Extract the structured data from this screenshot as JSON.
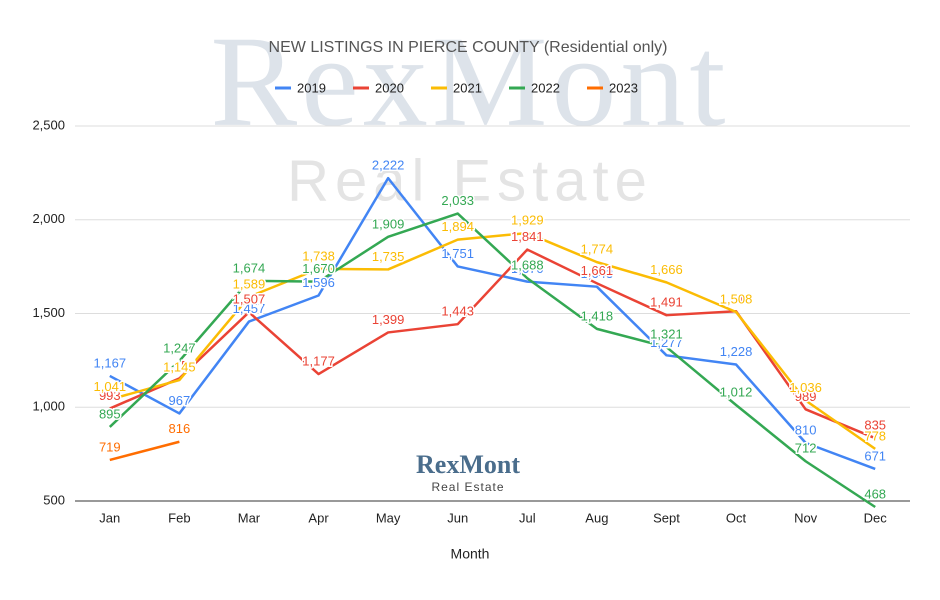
{
  "chart_data": {
    "type": "line",
    "title": "NEW LISTINGS IN PIERCE COUNTY  (Residential only)",
    "x_label": "Month",
    "watermark": {
      "title": "RexMont",
      "subtitle": "Real Estate"
    },
    "logo": {
      "title": "RexMont",
      "subtitle": "Real Estate"
    },
    "categories": [
      "Jan",
      "Feb",
      "Mar",
      "Apr",
      "May",
      "Jun",
      "Jul",
      "Aug",
      "Sept",
      "Oct",
      "Nov",
      "Dec"
    ],
    "series": [
      {
        "name": "2019",
        "color": "#4285f4",
        "values": [
          1167,
          967,
          1457,
          1596,
          2222,
          1751,
          1670,
          1643,
          1277,
          1228,
          810,
          671
        ],
        "value_labels": [
          "1,167",
          "967",
          "1,457",
          "1,596",
          "2,222",
          "1,751",
          "1,670",
          "1,643",
          "1,277",
          "1,228",
          "810",
          "671"
        ]
      },
      {
        "name": "2020",
        "color": "#ea4335",
        "values": [
          993,
          1154,
          1507,
          1177,
          1399,
          1443,
          1841,
          1661,
          1491,
          1512,
          989,
          835
        ],
        "value_labels": [
          "993",
          "1,154",
          "1,507",
          "1,177",
          "1,399",
          "1,443",
          "1,841",
          "1,661",
          "1,491",
          "1,512",
          "989",
          "835"
        ]
      },
      {
        "name": "2021",
        "color": "#fbbc04",
        "values": [
          1041,
          1145,
          1589,
          1738,
          1735,
          1894,
          1929,
          1774,
          1666,
          1508,
          1036,
          778
        ],
        "value_labels": [
          "1,041",
          "1,145",
          "1,589",
          "1,738",
          "1,735",
          "1,894",
          "1,929",
          "1,774",
          "1,666",
          "1,508",
          "1,036",
          "778"
        ]
      },
      {
        "name": "2022",
        "color": "#34a853",
        "values": [
          895,
          1247,
          1674,
          1670,
          1909,
          2033,
          1688,
          1418,
          1321,
          1012,
          712,
          468
        ],
        "value_labels": [
          "895",
          "1,247",
          "1,674",
          "1,670",
          "1,909",
          "2,033",
          "1,688",
          "1,418",
          "1,321",
          "1,012",
          "712",
          "468"
        ]
      },
      {
        "name": "2023",
        "color": "#ff6d01",
        "values": [
          719,
          816,
          null,
          null,
          null,
          null,
          null,
          null,
          null,
          null,
          null,
          null
        ],
        "value_labels": [
          "719",
          "816",
          null,
          null,
          null,
          null,
          null,
          null,
          null,
          null,
          null,
          null
        ]
      }
    ],
    "ylim": [
      500,
      2500
    ],
    "yticks": [
      {
        "value": 500,
        "label": "500"
      },
      {
        "value": 1000,
        "label": "1,000"
      },
      {
        "value": 1500,
        "label": "1,500"
      },
      {
        "value": 2000,
        "label": "2,000"
      },
      {
        "value": 2500,
        "label": "2,500"
      }
    ],
    "grid": true,
    "legend": "top"
  }
}
